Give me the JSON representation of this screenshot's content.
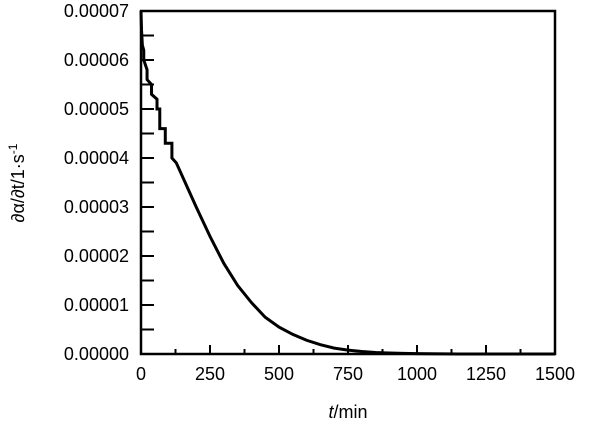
{
  "chart_data": {
    "type": "line",
    "xlabel_italic": "t",
    "xlabel_unit": "/min",
    "ylabel": "∂α/∂t/1·s",
    "ylabel_superscript": "-1",
    "xlim": [
      0,
      1500
    ],
    "ylim": [
      0,
      7e-05
    ],
    "x_ticks": [
      0,
      250,
      500,
      750,
      1000,
      1250,
      1500
    ],
    "x_tick_labels": [
      "0",
      "250",
      "500",
      "750",
      "1000",
      "1250",
      "1500"
    ],
    "y_ticks": [
      0,
      1e-05,
      2e-05,
      3e-05,
      4e-05,
      5e-05,
      6e-05,
      7e-05
    ],
    "y_tick_labels": [
      "0.00000",
      "0.00001",
      "0.00002",
      "0.00003",
      "0.00004",
      "0.00005",
      "0.00006",
      "0.00007"
    ],
    "grid": false,
    "line_color": "#000000",
    "series": [
      {
        "x": [
          0,
          2,
          5,
          10,
          10,
          22,
          22,
          38,
          38,
          58,
          58,
          68,
          68,
          88,
          88,
          112,
          112,
          128,
          128,
          160,
          200,
          250,
          300,
          350,
          400,
          450,
          500,
          550,
          600,
          650,
          700,
          750,
          800,
          850,
          900,
          950,
          1000,
          1050,
          1100,
          1150,
          1200,
          1250,
          1300,
          1350,
          1400,
          1450,
          1500
        ],
        "y": [
          7e-05,
          6.6e-05,
          6.3e-05,
          6.2e-05,
          6e-05,
          5.8e-05,
          5.6e-05,
          5.5e-05,
          5.3e-05,
          5.2e-05,
          5e-05,
          5e-05,
          4.6e-05,
          4.6e-05,
          4.3e-05,
          4.3e-05,
          4e-05,
          3.9e-05,
          3.9e-05,
          3.5e-05,
          3e-05,
          2.4e-05,
          1.85e-05,
          1.4e-05,
          1.05e-05,
          7.5e-06,
          5.5e-06,
          4e-06,
          2.8e-06,
          1.9e-06,
          1.2e-06,
          8e-07,
          5e-07,
          3e-07,
          2e-07,
          1.2e-07,
          7e-08,
          4e-08,
          2e-08,
          1e-08,
          5e-09,
          3e-09,
          2e-09,
          1e-09,
          5e-10,
          2e-10,
          1e-10
        ]
      }
    ]
  }
}
